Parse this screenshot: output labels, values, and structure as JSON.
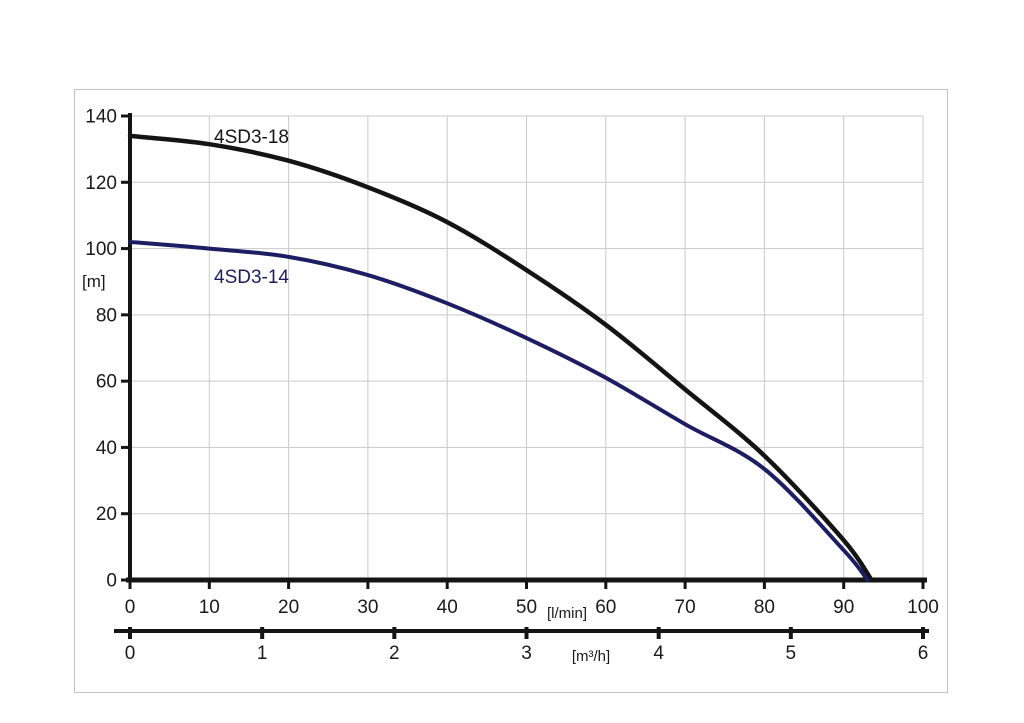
{
  "chart_data": {
    "type": "line",
    "title": "",
    "ylabel": "[m]",
    "y_axis": {
      "min": 0,
      "max": 140,
      "ticks": [
        0,
        20,
        40,
        60,
        80,
        100,
        120,
        140
      ],
      "unit": "[m]"
    },
    "x_axis_primary": {
      "min": 0,
      "max": 100,
      "ticks": [
        0,
        10,
        20,
        30,
        40,
        50,
        60,
        70,
        80,
        90,
        100
      ],
      "unit": "[l/min]"
    },
    "x_axis_secondary": {
      "min": 0,
      "max": 6,
      "ticks": [
        0,
        1,
        2,
        3,
        4,
        5,
        6
      ],
      "unit": "[m³/h]"
    },
    "grid": true,
    "legend_position": "inline-labels",
    "series": [
      {
        "name": "4SD3-18",
        "color": "#141414",
        "points": [
          [
            0,
            134
          ],
          [
            10,
            131.5
          ],
          [
            20,
            126.5
          ],
          [
            30,
            118.5
          ],
          [
            40,
            108
          ],
          [
            50,
            93.5
          ],
          [
            60,
            77
          ],
          [
            70,
            57.5
          ],
          [
            80,
            37.5
          ],
          [
            90,
            12
          ],
          [
            93.5,
            0
          ]
        ]
      },
      {
        "name": "4SD3-14",
        "color": "#1d1d63",
        "points": [
          [
            0,
            102
          ],
          [
            10,
            100
          ],
          [
            20,
            97.5
          ],
          [
            30,
            92
          ],
          [
            40,
            83.5
          ],
          [
            50,
            73
          ],
          [
            60,
            61
          ],
          [
            70,
            47
          ],
          [
            80,
            33.5
          ],
          [
            90,
            9
          ],
          [
            93,
            0
          ]
        ]
      }
    ],
    "colors": {
      "grid": "#c9c9cd",
      "axis": "#141414",
      "frame_border": "#c2c2c2",
      "text": "#1a1a1a"
    }
  }
}
